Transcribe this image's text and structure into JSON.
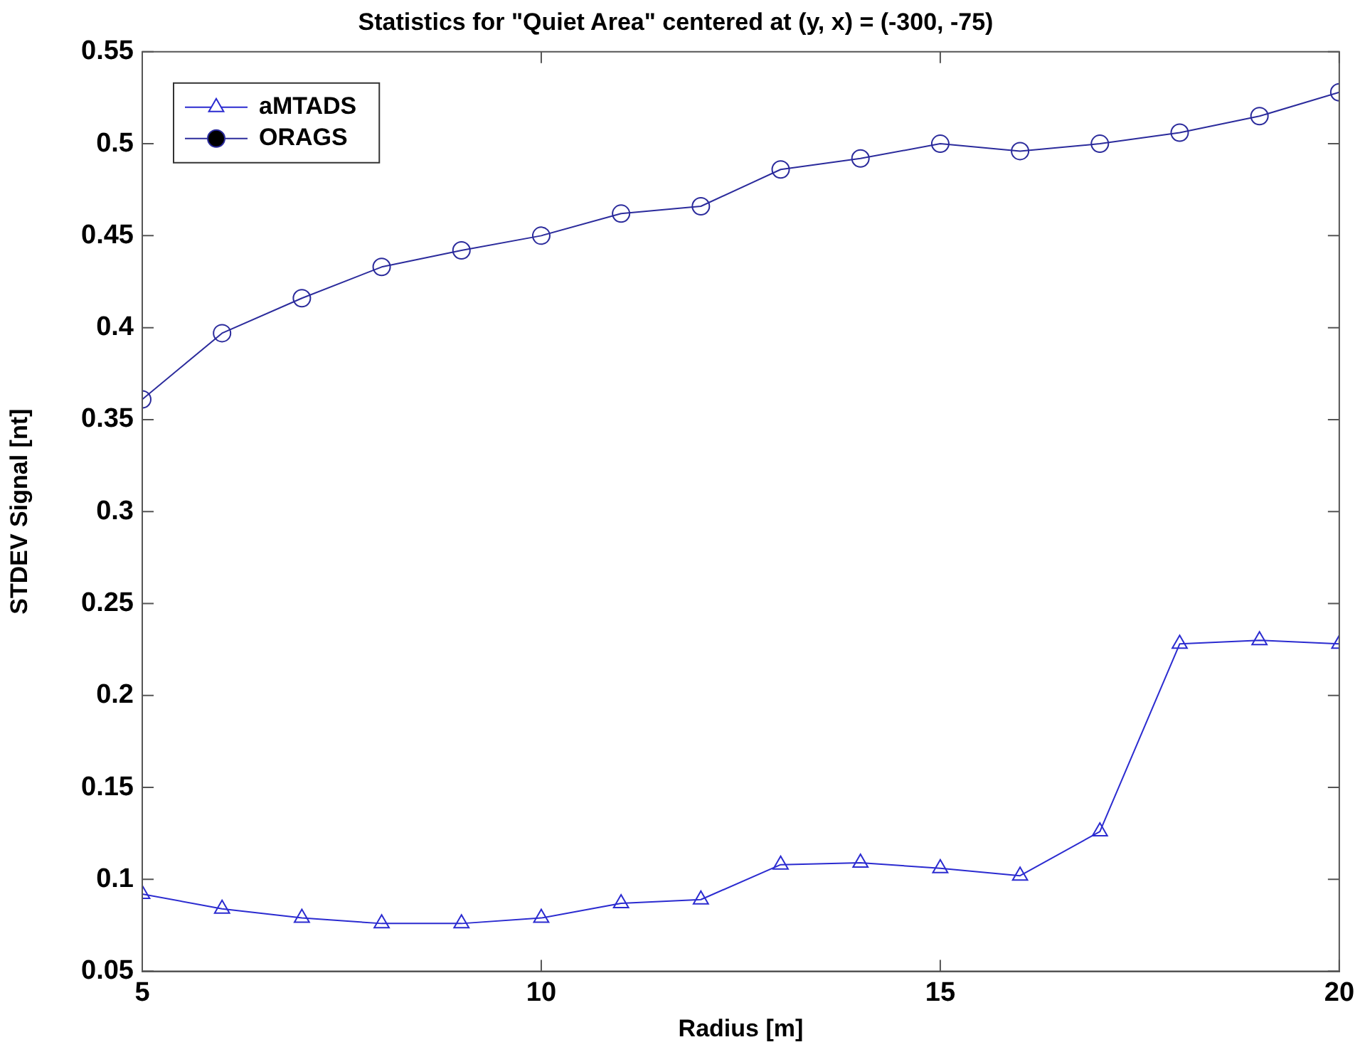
{
  "chart_data": {
    "type": "line",
    "title": "Statistics for \"Quiet Area\" centered at (y, x) = (-300, -75)",
    "xlabel": "Radius [m]",
    "ylabel": "STDEV Signal [nt]",
    "x": [
      5,
      6,
      7,
      8,
      9,
      10,
      11,
      12,
      13,
      14,
      15,
      16,
      17,
      18,
      19,
      20
    ],
    "series": [
      {
        "name": "aMTADS",
        "color": "#2b2bd0",
        "marker": "triangle",
        "values": [
          0.092,
          0.084,
          0.079,
          0.076,
          0.076,
          0.079,
          0.087,
          0.089,
          0.108,
          0.109,
          0.106,
          0.102,
          0.126,
          0.228,
          0.23,
          0.228
        ]
      },
      {
        "name": "ORAGS",
        "color": "#2b2b9c",
        "marker": "circle",
        "values": [
          0.361,
          0.397,
          0.416,
          0.433,
          0.442,
          0.45,
          0.462,
          0.466,
          0.486,
          0.492,
          0.5,
          0.496,
          0.5,
          0.506,
          0.515,
          0.528
        ]
      }
    ],
    "xlim": [
      5,
      20
    ],
    "xticks": [
      5,
      10,
      15,
      20
    ],
    "ylim": [
      0.05,
      0.55
    ],
    "yticks": [
      0.05,
      0.1,
      0.15,
      0.2,
      0.25,
      0.3,
      0.35,
      0.4,
      0.45,
      0.5,
      0.55
    ],
    "grid": false,
    "legend": "top left",
    "line_style": "solid"
  }
}
